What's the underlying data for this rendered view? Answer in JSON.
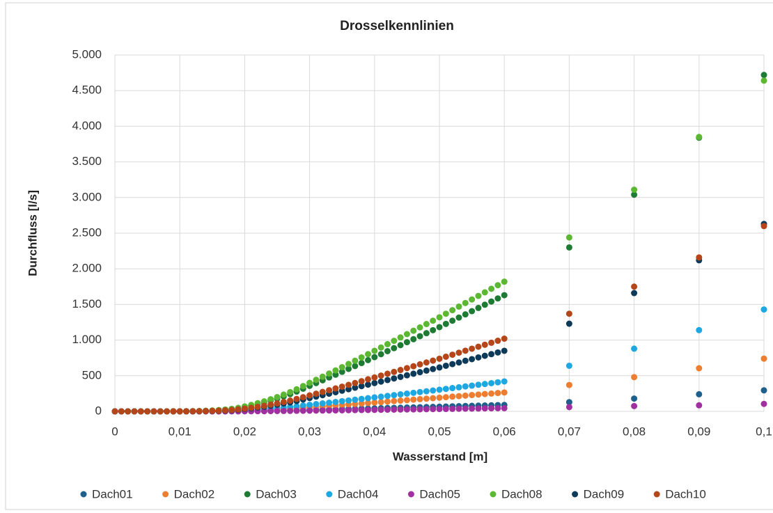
{
  "chart_data": {
    "type": "scatter",
    "title": "Drosselkennlinien",
    "x_label": "Wasserstand [m]",
    "y_label": "Durchfluss [l/s]",
    "x": [
      0,
      0.001,
      0.002,
      0.003,
      0.004,
      0.005,
      0.006,
      0.007,
      0.008,
      0.009,
      0.01,
      0.011,
      0.012,
      0.013,
      0.014,
      0.015,
      0.016,
      0.017,
      0.018,
      0.019,
      0.02,
      0.021,
      0.022,
      0.023,
      0.024,
      0.025,
      0.026,
      0.027,
      0.028,
      0.029,
      0.03,
      0.031,
      0.032,
      0.033,
      0.034,
      0.035,
      0.036,
      0.037,
      0.038,
      0.039,
      0.04,
      0.041,
      0.042,
      0.043,
      0.044,
      0.045,
      0.046,
      0.047,
      0.048,
      0.049,
      0.05,
      0.051,
      0.052,
      0.053,
      0.054,
      0.055,
      0.056,
      0.057,
      0.058,
      0.059,
      0.06,
      0.07,
      0.08,
      0.09,
      0.1
    ],
    "series": [
      {
        "name": "Dach01",
        "color": "#1f5f8b",
        "values": [
          0,
          0,
          0,
          0,
          0,
          0,
          0,
          0,
          0,
          0,
          0,
          0,
          0,
          0,
          0,
          1,
          1,
          1,
          2,
          2,
          3,
          4,
          6,
          7,
          8,
          10,
          12,
          13,
          15,
          18,
          20,
          22,
          24,
          26,
          28,
          31,
          33,
          35,
          38,
          40,
          42,
          45,
          47,
          49,
          51,
          54,
          56,
          59,
          61,
          63,
          66,
          68,
          71,
          73,
          76,
          78,
          80,
          83,
          85,
          88,
          90,
          130,
          180,
          240,
          295
        ]
      },
      {
        "name": "Dach02",
        "color": "#ed7d31",
        "values": [
          0,
          0,
          0,
          0,
          0,
          0,
          0,
          0,
          0,
          0,
          0,
          0,
          0,
          1,
          1,
          2,
          3,
          4,
          5,
          7,
          10,
          13,
          17,
          20,
          25,
          29,
          34,
          39,
          45,
          52,
          58,
          64,
          71,
          77,
          84,
          90,
          97,
          103,
          110,
          117,
          124,
          130,
          137,
          144,
          151,
          158,
          165,
          172,
          178,
          185,
          192,
          199,
          207,
          214,
          221,
          229,
          236,
          243,
          250,
          258,
          265,
          370,
          480,
          605,
          740
        ]
      },
      {
        "name": "Dach03",
        "color": "#1e7b34",
        "values": [
          0,
          0,
          0,
          0,
          0,
          0,
          0,
          0,
          0,
          1,
          1,
          2,
          3,
          4,
          7,
          11,
          16,
          23,
          32,
          45,
          63,
          81,
          103,
          125,
          152,
          179,
          210,
          242,
          278,
          318,
          358,
          397,
          436,
          476,
          515,
          555,
          596,
          636,
          678,
          719,
          761,
          802,
          845,
          887,
          929,
          971,
          1013,
          1055,
          1097,
          1139,
          1182,
          1227,
          1272,
          1316,
          1361,
          1406,
          1451,
          1496,
          1541,
          1585,
          1630,
          2300,
          3040,
          3840,
          4720
        ]
      },
      {
        "name": "Dach04",
        "color": "#1ea7e0",
        "values": [
          0,
          0,
          0,
          0,
          0,
          0,
          0,
          0,
          0,
          0,
          0,
          0,
          1,
          1,
          2,
          3,
          4,
          6,
          8,
          12,
          16,
          21,
          26,
          32,
          39,
          46,
          54,
          62,
          71,
          82,
          92,
          102,
          112,
          122,
          132,
          143,
          153,
          163,
          174,
          185,
          196,
          206,
          217,
          228,
          239,
          249,
          260,
          271,
          282,
          293,
          304,
          315,
          327,
          338,
          350,
          361,
          373,
          384,
          396,
          408,
          420,
          640,
          880,
          1140,
          1430
        ]
      },
      {
        "name": "Dach05",
        "color": "#a0309f",
        "values": [
          0,
          0,
          0,
          0,
          0,
          0,
          0,
          0,
          0,
          0,
          0,
          0,
          0,
          0,
          0,
          0,
          0,
          0,
          1,
          1,
          2,
          2,
          3,
          3,
          4,
          5,
          6,
          7,
          8,
          9,
          10,
          11,
          12,
          13,
          14,
          15,
          17,
          18,
          19,
          20,
          21,
          22,
          24,
          25,
          26,
          27,
          28,
          29,
          31,
          32,
          33,
          34,
          35,
          37,
          38,
          39,
          40,
          42,
          43,
          44,
          45,
          60,
          75,
          85,
          105
        ]
      },
      {
        "name": "Dach08",
        "color": "#5cb832",
        "values": [
          0,
          0,
          0,
          0,
          0,
          0,
          0,
          0,
          0,
          1,
          1,
          2,
          3,
          5,
          8,
          12,
          18,
          26,
          36,
          50,
          70,
          90,
          115,
          140,
          170,
          200,
          235,
          270,
          310,
          355,
          400,
          443,
          487,
          531,
          575,
          620,
          665,
          710,
          757,
          803,
          850,
          896,
          943,
          990,
          1037,
          1084,
          1131,
          1178,
          1225,
          1272,
          1320,
          1370,
          1420,
          1470,
          1520,
          1570,
          1620,
          1670,
          1720,
          1770,
          1820,
          2440,
          3110,
          3850,
          4640
        ]
      },
      {
        "name": "Dach09",
        "color": "#0e3a5a",
        "values": [
          0,
          0,
          0,
          0,
          0,
          0,
          0,
          0,
          0,
          0,
          0,
          1,
          1,
          2,
          4,
          6,
          8,
          12,
          17,
          23,
          33,
          42,
          54,
          65,
          79,
          93,
          110,
          126,
          145,
          166,
          187,
          207,
          227,
          248,
          269,
          290,
          311,
          332,
          354,
          375,
          397,
          418,
          440,
          462,
          484,
          506,
          528,
          550,
          572,
          594,
          616,
          640,
          663,
          686,
          710,
          733,
          757,
          780,
          803,
          827,
          850,
          1230,
          1660,
          2120,
          2630
        ]
      },
      {
        "name": "Dach10",
        "color": "#b5461a",
        "values": [
          0,
          0,
          0,
          0,
          0,
          0,
          0,
          0,
          0,
          1,
          1,
          1,
          2,
          3,
          4,
          7,
          10,
          15,
          20,
          28,
          39,
          50,
          64,
          78,
          95,
          112,
          132,
          151,
          174,
          199,
          224,
          248,
          273,
          297,
          322,
          347,
          372,
          398,
          424,
          450,
          476,
          502,
          528,
          554,
          581,
          607,
          633,
          660,
          686,
          712,
          739,
          767,
          795,
          823,
          851,
          879,
          907,
          935,
          963,
          991,
          1020,
          1370,
          1750,
          2160,
          2600
        ]
      }
    ],
    "xlim": [
      0,
      0.1
    ],
    "xticks": [
      0,
      {
        "value": 0.01,
        "label": "0,01"
      },
      {
        "value": 0.02,
        "label": "0,02"
      },
      {
        "value": 0.03,
        "label": "0,03"
      },
      {
        "value": 0.04,
        "label": "0,04"
      },
      {
        "value": 0.05,
        "label": "0,05"
      },
      {
        "value": 0.06,
        "label": "0,06"
      },
      {
        "value": 0.07,
        "label": "0,07"
      },
      {
        "value": 0.08,
        "label": "0,08"
      },
      {
        "value": 0.09,
        "label": "0,09"
      },
      {
        "value": 0.1,
        "label": "0,1"
      }
    ],
    "ylim": [
      0,
      5000
    ],
    "yticks": [
      0,
      500,
      {
        "value": 1000,
        "label": "1.000"
      },
      {
        "value": 1500,
        "label": "1.500"
      },
      {
        "value": 2000,
        "label": "2.000"
      },
      {
        "value": 2500,
        "label": "2.500"
      },
      {
        "value": 3000,
        "label": "3.000"
      },
      {
        "value": 3500,
        "label": "3.500"
      },
      {
        "value": 4000,
        "label": "4.000"
      },
      {
        "value": 4500,
        "label": "4.500"
      },
      {
        "value": 5000,
        "label": "5.000"
      }
    ],
    "grid": true,
    "legend": "bottom"
  }
}
